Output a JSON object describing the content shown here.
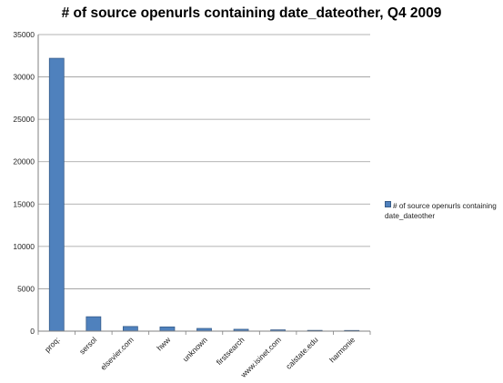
{
  "chart_data": {
    "type": "bar",
    "title": "# of source openurls containing date_dateother, Q4 2009",
    "xlabel": "",
    "ylabel": "",
    "categories": [
      "proq:",
      "sersol",
      "elsevier.com",
      "hww",
      "unknown",
      "firstsearch",
      "www.isinet.com",
      "calstate.edu",
      "harmonie"
    ],
    "series": [
      {
        "name": "# of source openurls containing date_dateother",
        "values": [
          32200,
          1700,
          550,
          500,
          320,
          220,
          150,
          90,
          80
        ]
      }
    ],
    "ylim": [
      0,
      35000
    ],
    "yticks": [
      0,
      5000,
      10000,
      15000,
      20000,
      25000,
      30000,
      35000
    ],
    "grid": true,
    "legend_position": "right",
    "colors": {
      "bar": "#4f81bd",
      "bar_edge": "#385d8a",
      "grid": "#9a9a9a"
    }
  }
}
